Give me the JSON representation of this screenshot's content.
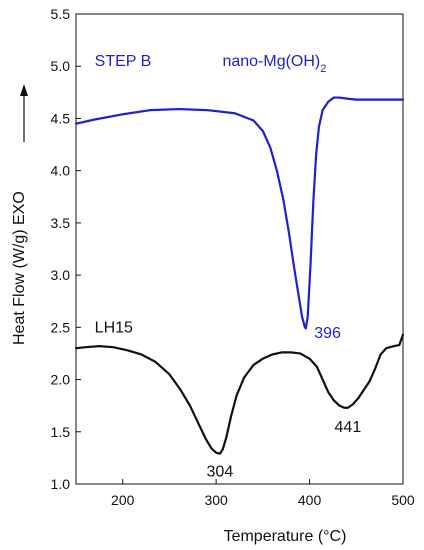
{
  "chart_data": {
    "type": "line",
    "title": "",
    "xlabel": "Temperature (°C)",
    "ylabel": "Heat Flow (W/g)   EXO",
    "xlim": [
      150,
      500
    ],
    "ylim": [
      1.0,
      5.5
    ],
    "x_ticks": [
      200,
      300,
      400,
      500
    ],
    "y_ticks": [
      1.0,
      1.5,
      2.0,
      2.5,
      3.0,
      3.5,
      4.0,
      4.5,
      5.0,
      5.5
    ],
    "grid": false,
    "colors": {
      "nano": "#1f1fd0",
      "lh15": "#111111",
      "axis": "#111111"
    },
    "series": [
      {
        "key": "nano",
        "x": [
          150,
          170,
          200,
          230,
          260,
          290,
          320,
          340,
          350,
          358,
          365,
          372,
          378,
          383,
          388,
          392,
          395,
          396,
          398,
          401,
          404,
          407,
          410,
          414,
          420,
          426,
          432,
          440,
          450,
          470,
          500
        ],
        "y": [
          4.45,
          4.49,
          4.54,
          4.58,
          4.59,
          4.58,
          4.55,
          4.48,
          4.38,
          4.22,
          4.0,
          3.72,
          3.4,
          3.1,
          2.82,
          2.6,
          2.5,
          2.49,
          2.6,
          3.1,
          3.7,
          4.15,
          4.42,
          4.58,
          4.66,
          4.7,
          4.7,
          4.69,
          4.68,
          4.68,
          4.68
        ]
      },
      {
        "key": "lh15",
        "x": [
          150,
          160,
          175,
          190,
          205,
          220,
          235,
          250,
          262,
          272,
          281,
          289,
          295,
          300,
          304,
          307,
          311,
          316,
          322,
          330,
          340,
          350,
          360,
          370,
          380,
          390,
          400,
          408,
          414,
          420,
          426,
          432,
          437,
          441,
          446,
          452,
          458,
          464,
          470,
          476,
          482,
          490,
          496,
          500
        ],
        "y": [
          2.3,
          2.31,
          2.32,
          2.31,
          2.28,
          2.24,
          2.17,
          2.05,
          1.9,
          1.75,
          1.58,
          1.43,
          1.34,
          1.3,
          1.29,
          1.33,
          1.45,
          1.65,
          1.85,
          2.02,
          2.14,
          2.2,
          2.24,
          2.26,
          2.26,
          2.25,
          2.2,
          2.12,
          2.0,
          1.88,
          1.8,
          1.75,
          1.73,
          1.73,
          1.76,
          1.82,
          1.9,
          1.98,
          2.1,
          2.24,
          2.3,
          2.32,
          2.33,
          2.43
        ]
      }
    ],
    "annotations": [
      {
        "key": "step",
        "text": "STEP B",
        "x": 170,
        "y": 5.0,
        "color": "#1f1fd0"
      },
      {
        "key": "nano-label",
        "text": "nano-Mg(OH)",
        "sub": "2",
        "x": 418,
        "y": 5.0,
        "color": "#1f1fd0"
      },
      {
        "key": "peak-396",
        "text": "396",
        "x": 405,
        "y": 2.4,
        "color": "#1f1fd0"
      },
      {
        "key": "lh15-label",
        "text": "LH15",
        "x": 170,
        "y": 2.45,
        "color": "#111111"
      },
      {
        "key": "peak-304",
        "text": "304",
        "x": 304,
        "y": 1.07,
        "color": "#111111"
      },
      {
        "key": "peak-441",
        "text": "441",
        "x": 441,
        "y": 1.5,
        "color": "#111111"
      }
    ]
  }
}
